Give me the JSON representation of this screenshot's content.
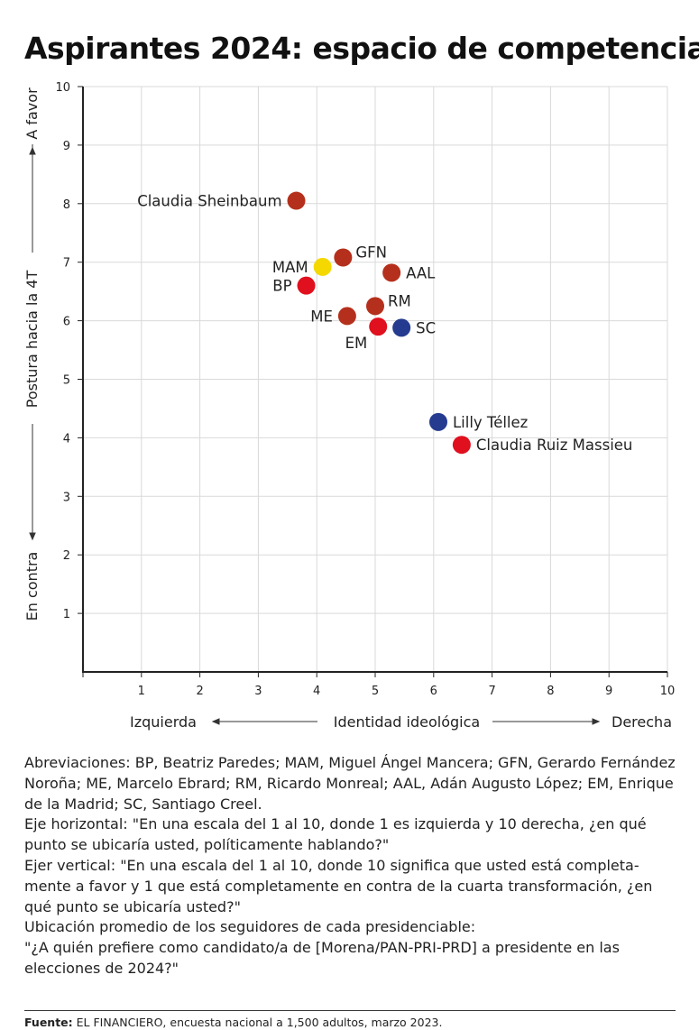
{
  "title": "Aspirantes 2024: espacio de competencia",
  "chart_data": {
    "type": "scatter",
    "title": "Aspirantes 2024: espacio de competencia",
    "xlabel": "Identidad ideológica",
    "x_left_label": "Izquierda",
    "x_right_label": "Derecha",
    "ylabel": "Postura hacia la 4T",
    "y_top_label": "A favor",
    "y_bottom_label": "En contra",
    "xlim": [
      0,
      10
    ],
    "ylim": [
      0,
      10
    ],
    "x_ticks": [
      "1",
      "2",
      "3",
      "4",
      "5",
      "6",
      "7",
      "8",
      "9",
      "10"
    ],
    "y_ticks": [
      "1",
      "2",
      "3",
      "4",
      "5",
      "6",
      "7",
      "8",
      "9",
      "10"
    ],
    "grid": true,
    "colors": {
      "morena": "#b5301c",
      "pri": "#e0101e",
      "pan": "#243b8f",
      "prd": "#f5d800"
    },
    "points": [
      {
        "label": "Claudia Sheinbaum",
        "x": 3.65,
        "y": 8.05,
        "color": "#b5301c",
        "label_pos": "left"
      },
      {
        "label": "GFN",
        "x": 4.45,
        "y": 7.08,
        "color": "#b5301c",
        "label_pos": "right-up"
      },
      {
        "label": "MAM",
        "x": 4.1,
        "y": 6.92,
        "color": "#f5d800",
        "label_pos": "left"
      },
      {
        "label": "AAL",
        "x": 5.28,
        "y": 6.82,
        "color": "#b5301c",
        "label_pos": "right"
      },
      {
        "label": "BP",
        "x": 3.82,
        "y": 6.6,
        "color": "#e0101e",
        "label_pos": "left"
      },
      {
        "label": "RM",
        "x": 5.0,
        "y": 6.25,
        "color": "#b5301c",
        "label_pos": "right-up"
      },
      {
        "label": "ME",
        "x": 4.52,
        "y": 6.08,
        "color": "#b5301c",
        "label_pos": "left"
      },
      {
        "label": "EM",
        "x": 5.05,
        "y": 5.9,
        "color": "#e0101e",
        "label_pos": "below-left"
      },
      {
        "label": "SC",
        "x": 5.45,
        "y": 5.88,
        "color": "#243b8f",
        "label_pos": "right"
      },
      {
        "label": "Lilly Téllez",
        "x": 6.08,
        "y": 4.27,
        "color": "#243b8f",
        "label_pos": "right"
      },
      {
        "label": "Claudia Ruiz Massieu",
        "x": 6.48,
        "y": 3.88,
        "color": "#e0101e",
        "label_pos": "right"
      }
    ]
  },
  "notes": {
    "abbreviations": "Abreviaciones: BP, Beatriz Paredes; MAM, Miguel Ángel Mancera; GFN, Gerardo Fernández Noroña; ME, Marcelo Ebrard; RM, Ricardo Monreal; AAL, Adán Augusto López; EM, Enrique de la Madrid; SC, Santiago Creel.",
    "horizontal": "Eje horizontal: \"En una escala del 1 al 10, donde 1 es izquierda y 10 derecha, ¿en qué punto se ubicaría usted, políticamente hablando?\"",
    "vertical": "Ejer vertical: \"En una escala del 1 al 10, donde 10 significa que usted está completa-mente a favor y 1 que está completamente en contra de la cuarta transformación, ¿en qué punto se ubicaría usted?\"",
    "location": "Ubicación promedio de los seguidores de cada presidenciable:",
    "question": "\"¿A quién prefiere como candidato/a de [Morena/PAN-PRI-PRD] a presidente en las elecciones de 2024?\""
  },
  "source": {
    "label": "Fuente:",
    "text": " EL FINANCIERO, encuesta nacional a 1,500 adultos, marzo 2023."
  }
}
